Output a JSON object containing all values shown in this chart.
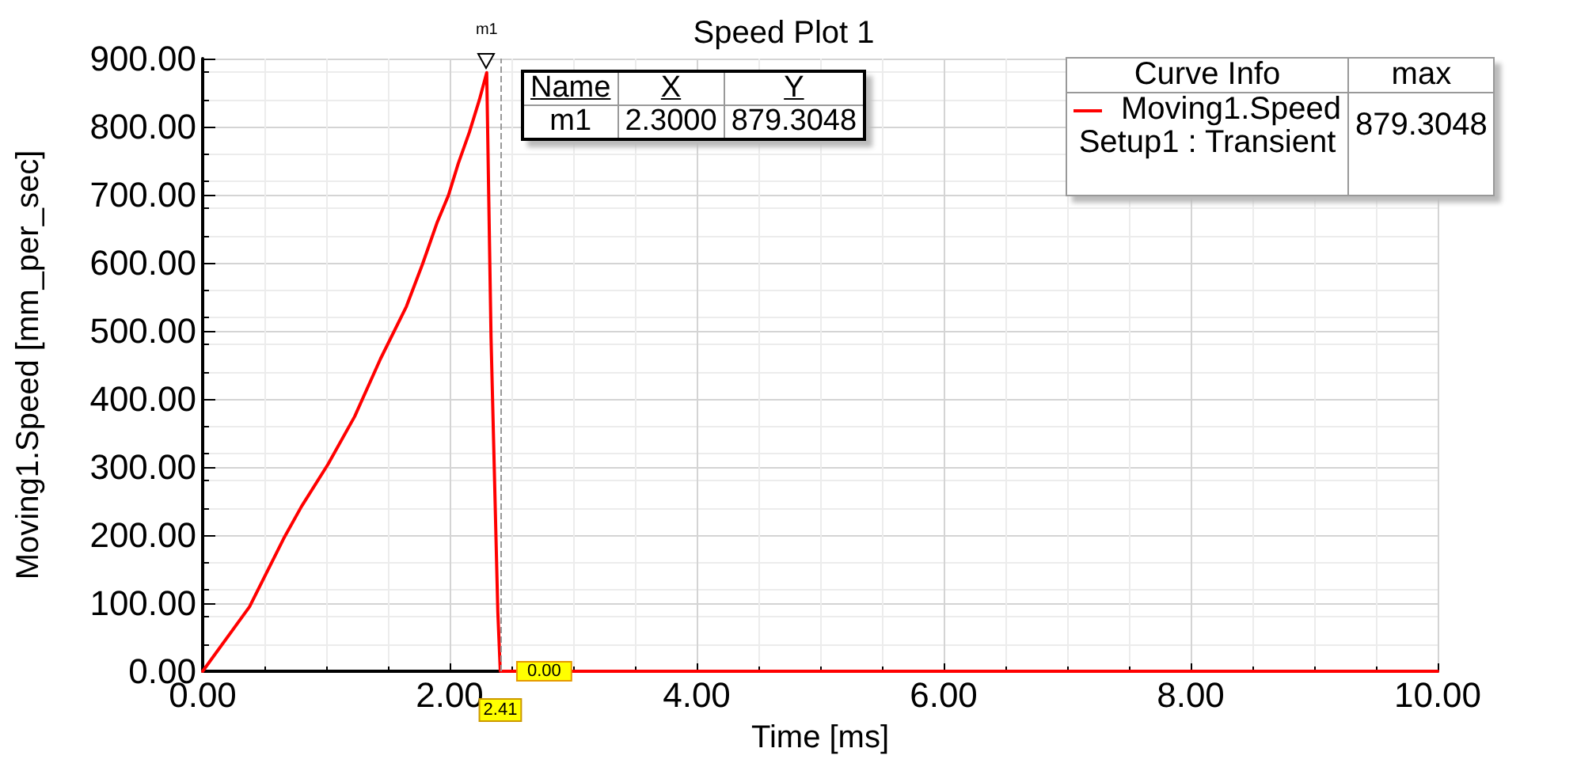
{
  "chart_data": {
    "type": "line",
    "title": "Speed Plot 1",
    "xlabel": "Time [ms]",
    "ylabel": "Moving1.Speed [mm_per_sec]",
    "legend_title": "Curve Info",
    "legend": "top right",
    "grid": true,
    "marker": "none",
    "line_style": "solid",
    "x": [
      0,
      0.38,
      0.656,
      0.8,
      1.015,
      1.23,
      1.44,
      1.65,
      1.78,
      1.9,
      1.99,
      2.07,
      2.16,
      2.24,
      2.3,
      2.335,
      2.39,
      2.41,
      10
    ],
    "series": [
      {
        "name": "Moving1.Speed",
        "color": "#ff0000",
        "values": [
          0,
          95,
          195,
          242,
          304,
          374,
          459,
          536,
          598,
          660,
          699,
          746,
          792,
          839,
          879.3048,
          490,
          87,
          0,
          0
        ]
      }
    ],
    "xlim": [
      0,
      10
    ],
    "xticks": [
      {
        "value": 0,
        "label": "0.00"
      },
      {
        "value": 2,
        "label": "2.00"
      },
      {
        "value": 4,
        "label": "4.00"
      },
      {
        "value": 6,
        "label": "6.00"
      },
      {
        "value": 8,
        "label": "8.00"
      },
      {
        "value": 10,
        "label": "10.00"
      }
    ],
    "ylim": [
      0,
      900
    ],
    "yticks": [
      {
        "value": 0,
        "label": "0.00"
      },
      {
        "value": 100,
        "label": "100.00"
      },
      {
        "value": 200,
        "label": "200.00"
      },
      {
        "value": 300,
        "label": "300.00"
      },
      {
        "value": 400,
        "label": "400.00"
      },
      {
        "value": 500,
        "label": "500.00"
      },
      {
        "value": 600,
        "label": "600.00"
      },
      {
        "value": 700,
        "label": "700.00"
      },
      {
        "value": 800,
        "label": "800.00"
      },
      {
        "value": 900,
        "label": "900.00"
      }
    ],
    "ref_lines": [
      {
        "axis": "x",
        "value": 2.41,
        "label": "2.41",
        "line_style": "dashed",
        "color": "#999999"
      }
    ],
    "annotations": [
      {
        "text": "m1",
        "x": 2.3,
        "y": 879.3048
      },
      {
        "text": "0.00",
        "x": 2.41,
        "y": 0
      },
      "Name",
      "X",
      "Y",
      "m1",
      "2.3000",
      "879.3048",
      "max",
      "Setup1 : Transient",
      "879.3048"
    ]
  }
}
